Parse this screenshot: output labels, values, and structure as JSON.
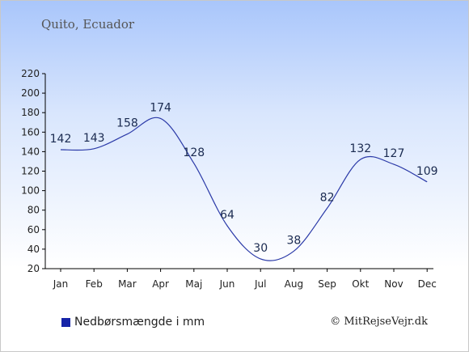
{
  "chart_data": {
    "type": "line",
    "title": "Quito, Ecuador",
    "categories": [
      "Jan",
      "Feb",
      "Mar",
      "Apr",
      "Maj",
      "Jun",
      "Jul",
      "Aug",
      "Sep",
      "Okt",
      "Nov",
      "Dec"
    ],
    "series": [
      {
        "name": "Nedbørsmængde i mm",
        "values": [
          142,
          143,
          158,
          174,
          128,
          64,
          30,
          38,
          82,
          132,
          127,
          109
        ]
      }
    ],
    "yticks": [
      20,
      40,
      60,
      80,
      100,
      120,
      140,
      160,
      180,
      200,
      220
    ],
    "ylim": [
      20,
      220
    ],
    "xlabel": "",
    "ylabel": "",
    "grid": false,
    "legend_position": "bottom-left",
    "line_color": "#2b3aa8",
    "legend_color": "#1624a8"
  },
  "copyright": "© MitRejseVejr.dk"
}
